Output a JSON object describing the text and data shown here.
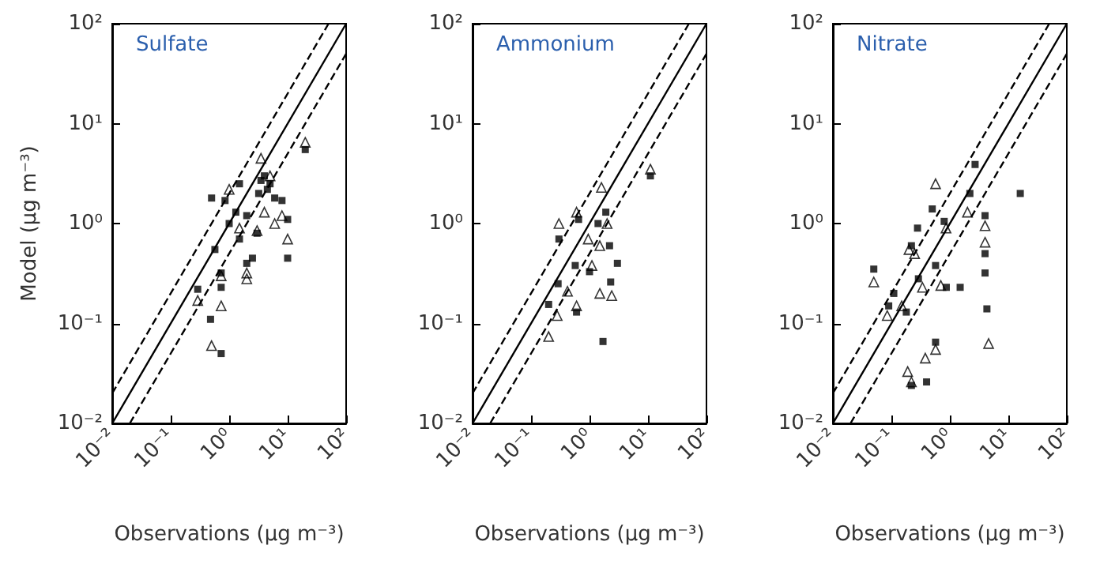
{
  "chart_data": [
    {
      "type": "scatter",
      "title": "Sulfate",
      "xlabel": "Observations (μg m⁻³)",
      "ylabel": "Model (μg m⁻³)",
      "log": "xy",
      "grid": false,
      "xlim": [
        0.01,
        100
      ],
      "ylim": [
        0.01,
        100
      ],
      "xticks": [
        {
          "value": 0.01,
          "label": "10⁻²"
        },
        {
          "value": 0.1,
          "label": "10⁻¹"
        },
        {
          "value": 1,
          "label": "10⁰"
        },
        {
          "value": 10,
          "label": "10¹"
        },
        {
          "value": 100,
          "label": "10²"
        }
      ],
      "yticks": [
        {
          "value": 0.01,
          "label": "10⁻²"
        },
        {
          "value": 0.1,
          "label": "10⁻¹"
        },
        {
          "value": 1,
          "label": "10⁰"
        },
        {
          "value": 10,
          "label": "10¹"
        },
        {
          "value": 100,
          "label": "10²"
        }
      ],
      "series": [
        {
          "type": "line",
          "line_style": "solid",
          "color": "#000000",
          "x": [
            0.01,
            100
          ],
          "values": [
            0.01,
            100
          ]
        },
        {
          "type": "line",
          "line_style": "dashed",
          "color": "#000000",
          "x": [
            0.01,
            50
          ],
          "values": [
            0.02,
            100
          ]
        },
        {
          "type": "line",
          "line_style": "dashed",
          "color": "#000000",
          "x": [
            0.02,
            100
          ],
          "values": [
            0.01,
            50
          ]
        },
        {
          "type": "scatter",
          "marker": "square",
          "color": "#000000",
          "x": [
            0.29,
            0.48,
            0.73,
            0.5,
            0.57,
            0.73,
            0.73,
            0.85,
            1.0,
            1.3,
            1.5,
            1.5,
            2.0,
            2.0,
            2.5,
            3.0,
            3.2,
            3.5,
            4.0,
            4.5,
            5.0,
            6.0,
            8.0,
            10,
            10,
            20
          ],
          "values": [
            0.22,
            0.11,
            0.05,
            1.8,
            0.55,
            0.32,
            0.23,
            1.7,
            1.0,
            1.3,
            0.7,
            2.5,
            0.4,
            1.2,
            0.45,
            0.8,
            2.0,
            2.7,
            3.0,
            2.2,
            2.5,
            1.8,
            1.7,
            0.45,
            1.1,
            5.5
          ]
        },
        {
          "type": "scatter",
          "marker": "triangle",
          "color": "#000000",
          "x": [
            0.29,
            0.5,
            0.73,
            0.73,
            1.0,
            1.5,
            2.0,
            2.0,
            3.0,
            3.5,
            4.0,
            5.0,
            6.0,
            8.0,
            10,
            20
          ],
          "values": [
            0.17,
            0.06,
            0.15,
            0.3,
            2.2,
            0.9,
            0.28,
            0.32,
            0.85,
            4.5,
            1.3,
            3.0,
            1.0,
            1.2,
            0.7,
            6.5
          ]
        }
      ]
    },
    {
      "type": "scatter",
      "title": "Ammonium",
      "xlabel": "Observations (μg m⁻³)",
      "log": "xy",
      "grid": false,
      "xlim": [
        0.01,
        100
      ],
      "ylim": [
        0.01,
        100
      ],
      "xticks": [
        {
          "value": 0.01,
          "label": "10⁻²"
        },
        {
          "value": 0.1,
          "label": "10⁻¹"
        },
        {
          "value": 1,
          "label": "10⁰"
        },
        {
          "value": 10,
          "label": "10¹"
        },
        {
          "value": 100,
          "label": "10²"
        }
      ],
      "yticks": [
        {
          "value": 0.01,
          "label": "10⁻²"
        },
        {
          "value": 0.1,
          "label": "10⁻¹"
        },
        {
          "value": 1,
          "label": "10⁰"
        },
        {
          "value": 10,
          "label": "10¹"
        },
        {
          "value": 100,
          "label": "10²"
        }
      ],
      "series": [
        {
          "type": "line",
          "line_style": "solid",
          "color": "#000000",
          "x": [
            0.01,
            100
          ],
          "values": [
            0.01,
            100
          ]
        },
        {
          "type": "line",
          "line_style": "dashed",
          "color": "#000000",
          "x": [
            0.01,
            50
          ],
          "values": [
            0.02,
            100
          ]
        },
        {
          "type": "line",
          "line_style": "dashed",
          "color": "#000000",
          "x": [
            0.02,
            100
          ],
          "values": [
            0.01,
            50
          ]
        },
        {
          "type": "scatter",
          "marker": "square",
          "color": "#000000",
          "x": [
            0.2,
            0.29,
            0.3,
            0.57,
            0.6,
            0.65,
            1.0,
            1.4,
            1.7,
            1.9,
            2.2,
            3.0,
            2.3,
            11
          ],
          "values": [
            0.155,
            0.25,
            0.7,
            0.38,
            0.13,
            1.1,
            0.33,
            1.0,
            0.066,
            1.3,
            0.6,
            0.4,
            0.26,
            3.0
          ]
        },
        {
          "type": "scatter",
          "marker": "triangle",
          "color": "#000000",
          "x": [
            0.2,
            0.28,
            0.3,
            0.42,
            0.6,
            0.6,
            1.1,
            1.5,
            1.6,
            2.0,
            1.5,
            2.4,
            0.95,
            11
          ],
          "values": [
            0.074,
            0.12,
            1.0,
            0.21,
            0.15,
            1.3,
            0.38,
            0.6,
            2.3,
            1.0,
            0.2,
            0.19,
            0.7,
            3.5
          ]
        }
      ]
    },
    {
      "type": "scatter",
      "title": "Nitrate",
      "xlabel": "Observations (μg m⁻³)",
      "log": "xy",
      "grid": false,
      "xlim": [
        0.01,
        100
      ],
      "ylim": [
        0.01,
        100
      ],
      "xticks": [
        {
          "value": 0.01,
          "label": "10⁻²"
        },
        {
          "value": 0.1,
          "label": "10⁻¹"
        },
        {
          "value": 1,
          "label": "10⁰"
        },
        {
          "value": 10,
          "label": "10¹"
        },
        {
          "value": 100,
          "label": "10²"
        }
      ],
      "yticks": [
        {
          "value": 0.01,
          "label": "10⁻²"
        },
        {
          "value": 0.1,
          "label": "10⁻¹"
        },
        {
          "value": 1,
          "label": "10⁰"
        },
        {
          "value": 10,
          "label": "10¹"
        },
        {
          "value": 100,
          "label": "10²"
        }
      ],
      "series": [
        {
          "type": "line",
          "line_style": "solid",
          "color": "#000000",
          "x": [
            0.01,
            100
          ],
          "values": [
            0.01,
            100
          ]
        },
        {
          "type": "line",
          "line_style": "dashed",
          "color": "#000000",
          "x": [
            0.01,
            50
          ],
          "values": [
            0.02,
            100
          ]
        },
        {
          "type": "line",
          "line_style": "dashed",
          "color": "#000000",
          "x": [
            0.02,
            100
          ],
          "values": [
            0.01,
            50
          ]
        },
        {
          "type": "scatter",
          "marker": "square",
          "color": "#000000",
          "x": [
            0.05,
            0.09,
            0.11,
            0.18,
            0.22,
            0.22,
            0.28,
            0.29,
            0.4,
            0.57,
            0.5,
            0.57,
            0.8,
            0.87,
            1.5,
            2.2,
            2.7,
            4.0,
            4.0,
            4.0,
            4.3,
            16
          ],
          "values": [
            0.35,
            0.15,
            0.2,
            0.13,
            0.024,
            0.6,
            0.9,
            0.28,
            0.026,
            0.065,
            1.4,
            0.38,
            1.05,
            0.23,
            0.23,
            2.0,
            3.9,
            1.2,
            0.5,
            0.32,
            0.14,
            2.0
          ]
        },
        {
          "type": "scatter",
          "marker": "triangle",
          "color": "#000000",
          "x": [
            0.05,
            0.085,
            0.15,
            0.19,
            0.22,
            0.2,
            0.25,
            0.34,
            0.38,
            0.57,
            0.57,
            0.7,
            0.86,
            2.0,
            4.0,
            4.0,
            4.6
          ],
          "values": [
            0.26,
            0.12,
            0.15,
            0.033,
            0.026,
            0.55,
            0.5,
            0.23,
            0.045,
            0.055,
            2.5,
            0.24,
            0.9,
            1.3,
            0.95,
            0.65,
            0.063
          ]
        }
      ]
    }
  ]
}
